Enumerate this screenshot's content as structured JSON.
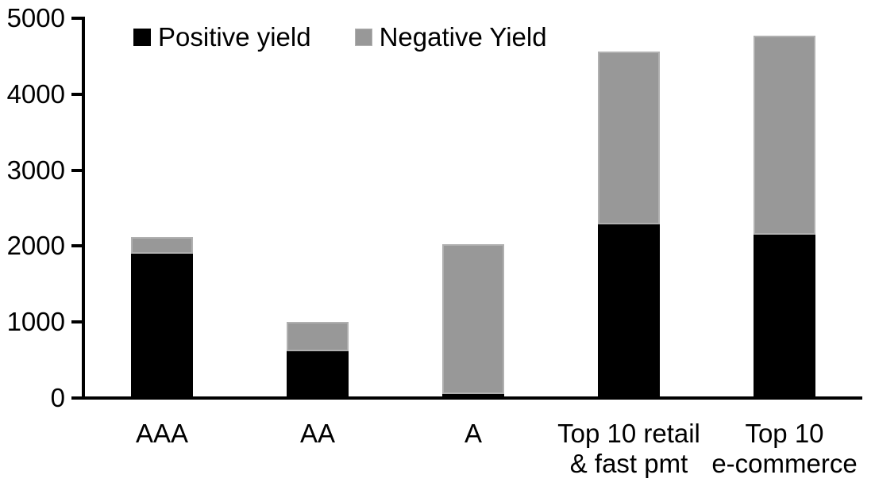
{
  "chart_data": {
    "type": "bar",
    "stacked": true,
    "title": "",
    "xlabel": "",
    "ylabel": "",
    "categories": [
      "AAA",
      "AA",
      "A",
      "Top 10 retail & fast pmt",
      "Top 10 e-commerce"
    ],
    "category_label_lines": [
      [
        "AAA"
      ],
      [
        "AA"
      ],
      [
        "A"
      ],
      [
        "Top 10 retail",
        "& fast pmt"
      ],
      [
        "Top 10",
        "e-commerce"
      ]
    ],
    "series": [
      {
        "name": "Positive yield",
        "color": "#000000",
        "values": [
          1900,
          620,
          50,
          2290,
          2150
        ]
      },
      {
        "name": "Negative Yield",
        "color": "#989898",
        "values": [
          220,
          380,
          1980,
          2270,
          2620
        ]
      }
    ],
    "totals": [
      2120,
      1000,
      2030,
      4560,
      4770
    ],
    "ylim": [
      0,
      5000
    ],
    "ytick_interval": 1000,
    "ytick_labels": [
      "0",
      "1000",
      "2000",
      "3000",
      "4000",
      "5000"
    ],
    "grid": false,
    "legend_position": "top",
    "colors": {
      "positive": "#000000",
      "negative": "#989898",
      "negative_border": "#b0b0b0",
      "axis": "#000000",
      "background": "#ffffff"
    }
  }
}
